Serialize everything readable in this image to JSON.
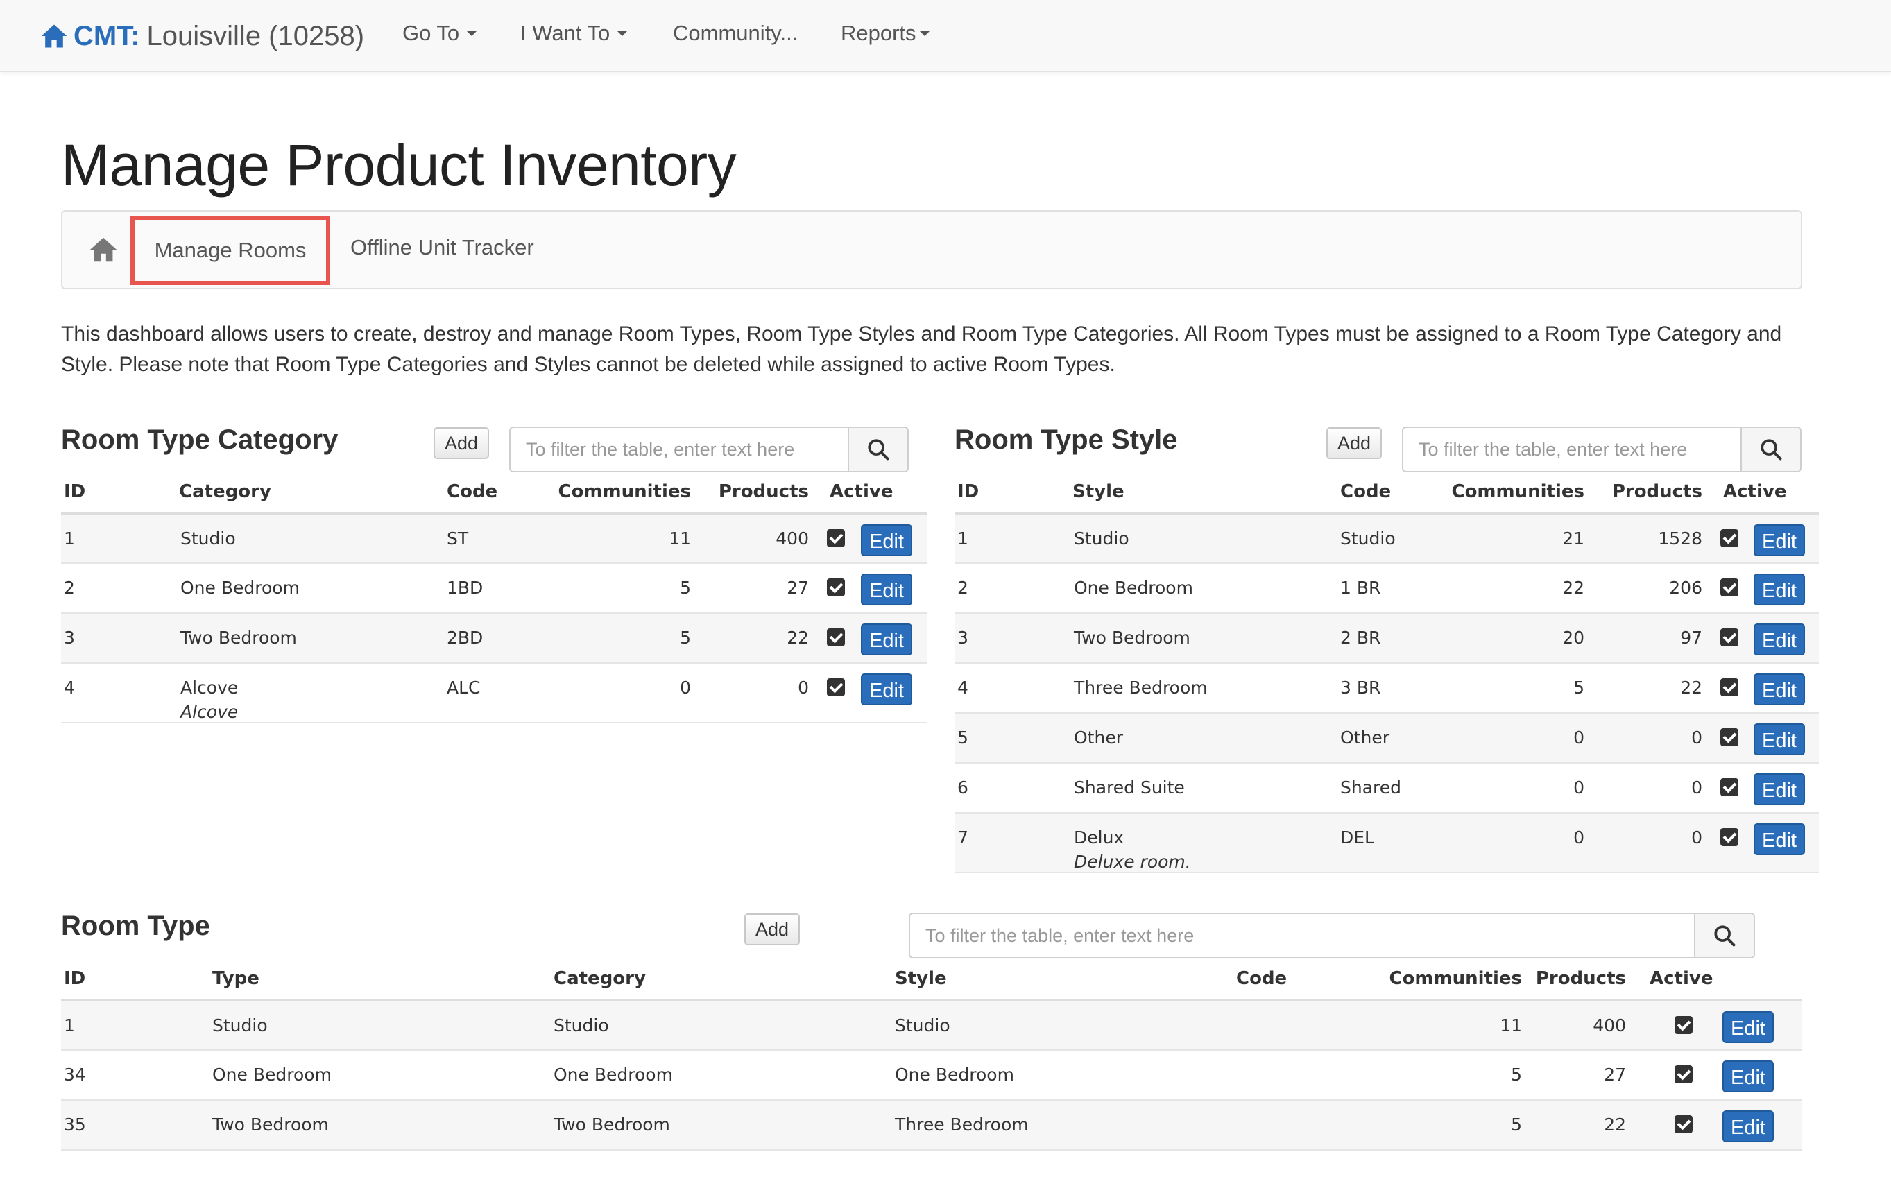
{
  "navbar": {
    "brand_prefix": "CMT:",
    "brand_name": "Louisville (10258)",
    "items": [
      "Go To",
      "I Want To",
      "Community...",
      "Reports"
    ]
  },
  "page_title": "Manage Product Inventory",
  "breadcrumb": {
    "active": "Manage Rooms",
    "link": "Offline Unit Tracker"
  },
  "description": "This dashboard allows users to create, destroy and manage Room Types, Room Type Styles and Room Type Categories. All Room Types must be assigned to a Room Type Category and Style. Please note that Room Type Categories and Styles cannot be deleted while assigned to active Room Types.",
  "filter_placeholder": "To filter the table, enter text here",
  "add_label": "Add",
  "edit_label": "Edit",
  "category_panel": {
    "title": "Room Type Category",
    "headers": [
      "ID",
      "Category",
      "Code",
      "Communities",
      "Products",
      "Active"
    ],
    "rows": [
      {
        "id": "1",
        "name": "Studio",
        "sub": "",
        "code": "ST",
        "communities": "11",
        "products": "400"
      },
      {
        "id": "2",
        "name": "One Bedroom",
        "sub": "",
        "code": "1BD",
        "communities": "5",
        "products": "27"
      },
      {
        "id": "3",
        "name": "Two Bedroom",
        "sub": "",
        "code": "2BD",
        "communities": "5",
        "products": "22"
      },
      {
        "id": "4",
        "name": "Alcove",
        "sub": "Alcove",
        "code": "ALC",
        "communities": "0",
        "products": "0"
      }
    ]
  },
  "style_panel": {
    "title": "Room Type Style",
    "headers": [
      "ID",
      "Style",
      "Code",
      "Communities",
      "Products",
      "Active"
    ],
    "rows": [
      {
        "id": "1",
        "name": "Studio",
        "sub": "",
        "code": "Studio",
        "communities": "21",
        "products": "1528"
      },
      {
        "id": "2",
        "name": "One Bedroom",
        "sub": "",
        "code": "1 BR",
        "communities": "22",
        "products": "206"
      },
      {
        "id": "3",
        "name": "Two Bedroom",
        "sub": "",
        "code": "2 BR",
        "communities": "20",
        "products": "97"
      },
      {
        "id": "4",
        "name": "Three Bedroom",
        "sub": "",
        "code": "3 BR",
        "communities": "5",
        "products": "22"
      },
      {
        "id": "5",
        "name": "Other",
        "sub": "",
        "code": "Other",
        "communities": "0",
        "products": "0"
      },
      {
        "id": "6",
        "name": "Shared Suite",
        "sub": "",
        "code": "Shared",
        "communities": "0",
        "products": "0"
      },
      {
        "id": "7",
        "name": "Delux",
        "sub": "Deluxe room.",
        "code": "DEL",
        "communities": "0",
        "products": "0"
      }
    ]
  },
  "type_panel": {
    "title": "Room Type",
    "headers": [
      "ID",
      "Type",
      "Category",
      "Style",
      "Code",
      "Communities",
      "Products",
      "Active"
    ],
    "rows": [
      {
        "id": "1",
        "type": "Studio",
        "category": "Studio",
        "style": "Studio",
        "code": "",
        "communities": "11",
        "products": "400"
      },
      {
        "id": "34",
        "type": "One Bedroom",
        "category": "One Bedroom",
        "style": "One Bedroom",
        "code": "",
        "communities": "5",
        "products": "27"
      },
      {
        "id": "35",
        "type": "Two Bedroom",
        "category": "Two Bedroom",
        "style": "Three Bedroom",
        "code": "",
        "communities": "5",
        "products": "22"
      }
    ]
  },
  "colors": {
    "brand": "#2a6ebb",
    "highlight": "#e8554e"
  }
}
